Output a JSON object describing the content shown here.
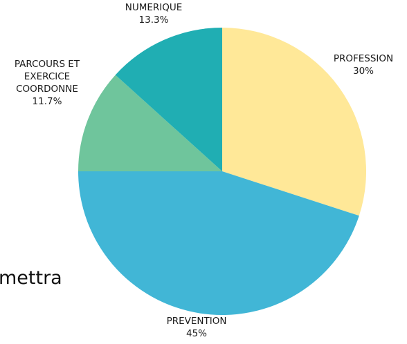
{
  "chart_data": {
    "type": "pie",
    "title": "",
    "start_angle_deg": 0,
    "direction": "clockwise",
    "slices": [
      {
        "label": "PROFESSION",
        "lines": [
          "PROFESSION"
        ],
        "percent_label": "30%",
        "value": 30,
        "color": "#FFE898"
      },
      {
        "label": "PREVENTION",
        "lines": [
          "PREVENTION"
        ],
        "percent_label": "45%",
        "value": 45,
        "color": "#41B6D6"
      },
      {
        "label": "PARCOURS ET EXERCICE COORDONNE",
        "lines": [
          "PARCOURS ET",
          "EXERCICE",
          "COORDONNE"
        ],
        "percent_label": "11.7%",
        "value": 11.7,
        "color": "#6FC59C"
      },
      {
        "label": "NUMERIQUE",
        "lines": [
          "NUMERIQUE"
        ],
        "percent_label": "13.3%",
        "value": 13.3,
        "color": "#20AEB3"
      }
    ]
  },
  "watermark": {
    "text": "mettra"
  }
}
